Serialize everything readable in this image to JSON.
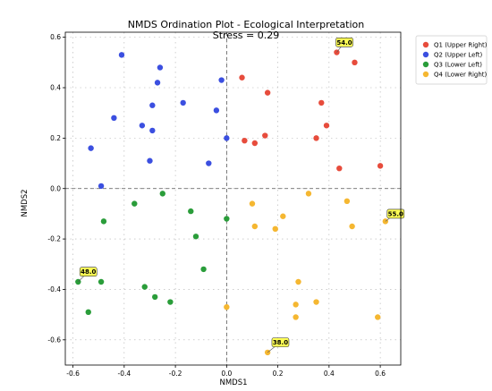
{
  "chart_data": {
    "type": "scatter",
    "title": "NMDS Ordination Plot - Ecological Interpretation",
    "subtitle": "Stress = 0.29",
    "xlabel": "NMDS1",
    "ylabel": "NMDS2",
    "xlim": [
      -0.63,
      0.68
    ],
    "ylim": [
      -0.7,
      0.62
    ],
    "xticks": [
      "-0.6",
      "-0.4",
      "-0.2",
      "0.0",
      "0.2",
      "0.4",
      "0.6"
    ],
    "yticks": [
      "0.6",
      "0.4",
      "0.2",
      "0.0",
      "-0.2",
      "-0.4",
      "-0.6"
    ],
    "grid": true,
    "reference_lines": {
      "x": 0,
      "y": 0
    },
    "legend_position": "top-right",
    "series": [
      {
        "name": "Q1 (Upper Right)",
        "color": "#e74c3c",
        "points": [
          [
            0.43,
            0.54
          ],
          [
            0.5,
            0.5
          ],
          [
            0.06,
            0.44
          ],
          [
            0.16,
            0.38
          ],
          [
            0.37,
            0.34
          ],
          [
            0.39,
            0.25
          ],
          [
            0.07,
            0.19
          ],
          [
            0.11,
            0.18
          ],
          [
            0.15,
            0.21
          ],
          [
            0.35,
            0.2
          ],
          [
            0.44,
            0.08
          ],
          [
            0.6,
            0.09
          ]
        ]
      },
      {
        "name": "Q2 (Upper Left)",
        "color": "#3b4fe0",
        "points": [
          [
            -0.41,
            0.53
          ],
          [
            -0.26,
            0.48
          ],
          [
            -0.27,
            0.42
          ],
          [
            -0.02,
            0.43
          ],
          [
            -0.29,
            0.33
          ],
          [
            -0.17,
            0.34
          ],
          [
            -0.44,
            0.28
          ],
          [
            -0.33,
            0.25
          ],
          [
            -0.29,
            0.23
          ],
          [
            -0.04,
            0.31
          ],
          [
            -0.53,
            0.16
          ],
          [
            0.0,
            0.2
          ],
          [
            -0.3,
            0.11
          ],
          [
            -0.07,
            0.1
          ],
          [
            -0.49,
            0.01
          ]
        ]
      },
      {
        "name": "Q3 (Lower Left)",
        "color": "#2a9d3a",
        "points": [
          [
            -0.25,
            -0.02
          ],
          [
            -0.36,
            -0.06
          ],
          [
            -0.48,
            -0.13
          ],
          [
            -0.14,
            -0.09
          ],
          [
            0.0,
            -0.12
          ],
          [
            -0.12,
            -0.19
          ],
          [
            -0.09,
            -0.32
          ],
          [
            -0.58,
            -0.37
          ],
          [
            -0.49,
            -0.37
          ],
          [
            -0.32,
            -0.39
          ],
          [
            -0.28,
            -0.43
          ],
          [
            -0.22,
            -0.45
          ],
          [
            -0.54,
            -0.49
          ]
        ]
      },
      {
        "name": "Q4 (Lower Right)",
        "color": "#f5b731",
        "points": [
          [
            0.32,
            -0.02
          ],
          [
            0.47,
            -0.05
          ],
          [
            0.1,
            -0.06
          ],
          [
            0.22,
            -0.11
          ],
          [
            0.62,
            -0.13
          ],
          [
            0.19,
            -0.16
          ],
          [
            0.11,
            -0.15
          ],
          [
            0.49,
            -0.15
          ],
          [
            0.28,
            -0.37
          ],
          [
            0.27,
            -0.46
          ],
          [
            0.35,
            -0.45
          ],
          [
            0.0,
            -0.47
          ],
          [
            0.27,
            -0.51
          ],
          [
            0.59,
            -0.51
          ],
          [
            0.16,
            -0.65
          ]
        ]
      }
    ],
    "annotations": [
      {
        "text": "54.0",
        "x": 0.43,
        "y": 0.54,
        "dx": 0.03,
        "dy": 0.04
      },
      {
        "text": "55.0",
        "x": 0.62,
        "y": -0.13,
        "dx": 0.04,
        "dy": 0.03
      },
      {
        "text": "48.0",
        "x": -0.58,
        "y": -0.37,
        "dx": 0.04,
        "dy": 0.04
      },
      {
        "text": "38.0",
        "x": 0.16,
        "y": -0.65,
        "dx": 0.05,
        "dy": 0.04
      }
    ]
  }
}
